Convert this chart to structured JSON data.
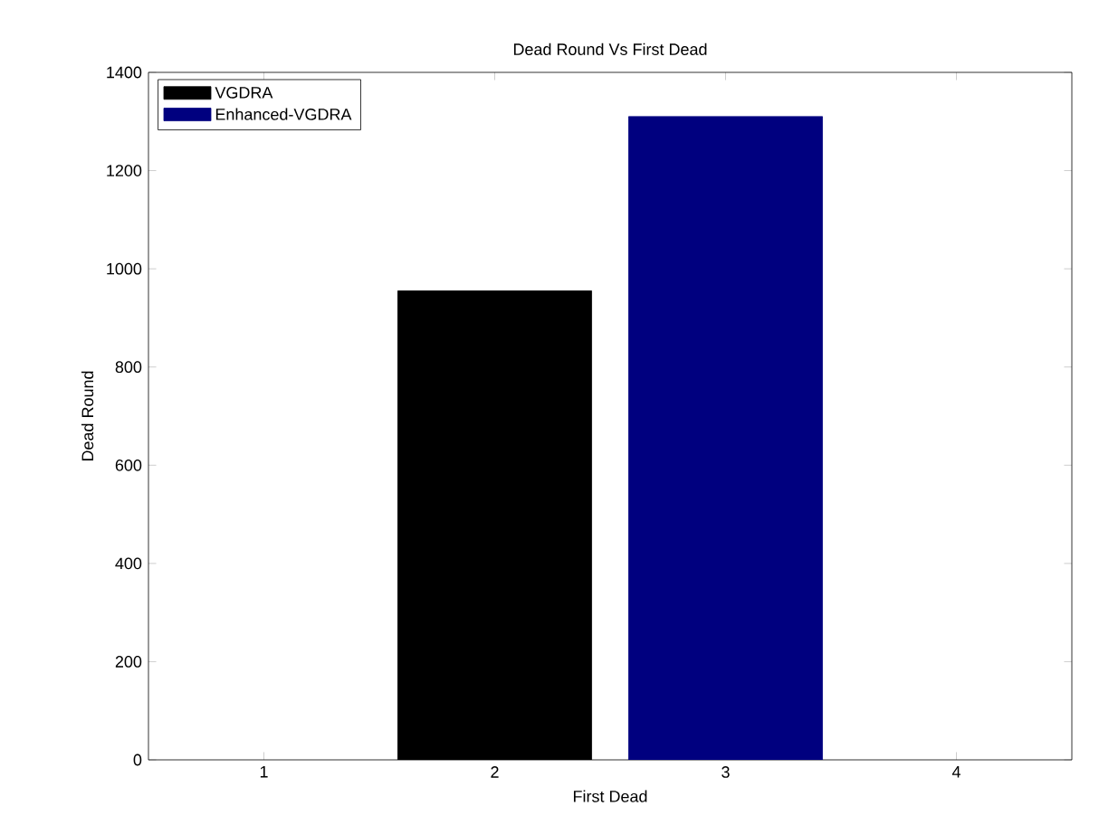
{
  "chart_data": {
    "type": "bar",
    "title": "Dead Round Vs First Dead",
    "xlabel": "First Dead",
    "ylabel": "Dead Round",
    "xlim": [
      0.5,
      4.5
    ],
    "xticks": [
      1,
      2,
      3,
      4
    ],
    "ylim": [
      0,
      1400
    ],
    "yticks": [
      0,
      200,
      400,
      600,
      800,
      1000,
      1200,
      1400
    ],
    "series": [
      {
        "name": "VGDRA",
        "color": "#000000",
        "x": [
          2
        ],
        "values": [
          955
        ]
      },
      {
        "name": "Enhanced-VGDRA",
        "color": "#00007f",
        "x": [
          3
        ],
        "values": [
          1310
        ]
      }
    ],
    "legend": "top left",
    "grid": false
  }
}
